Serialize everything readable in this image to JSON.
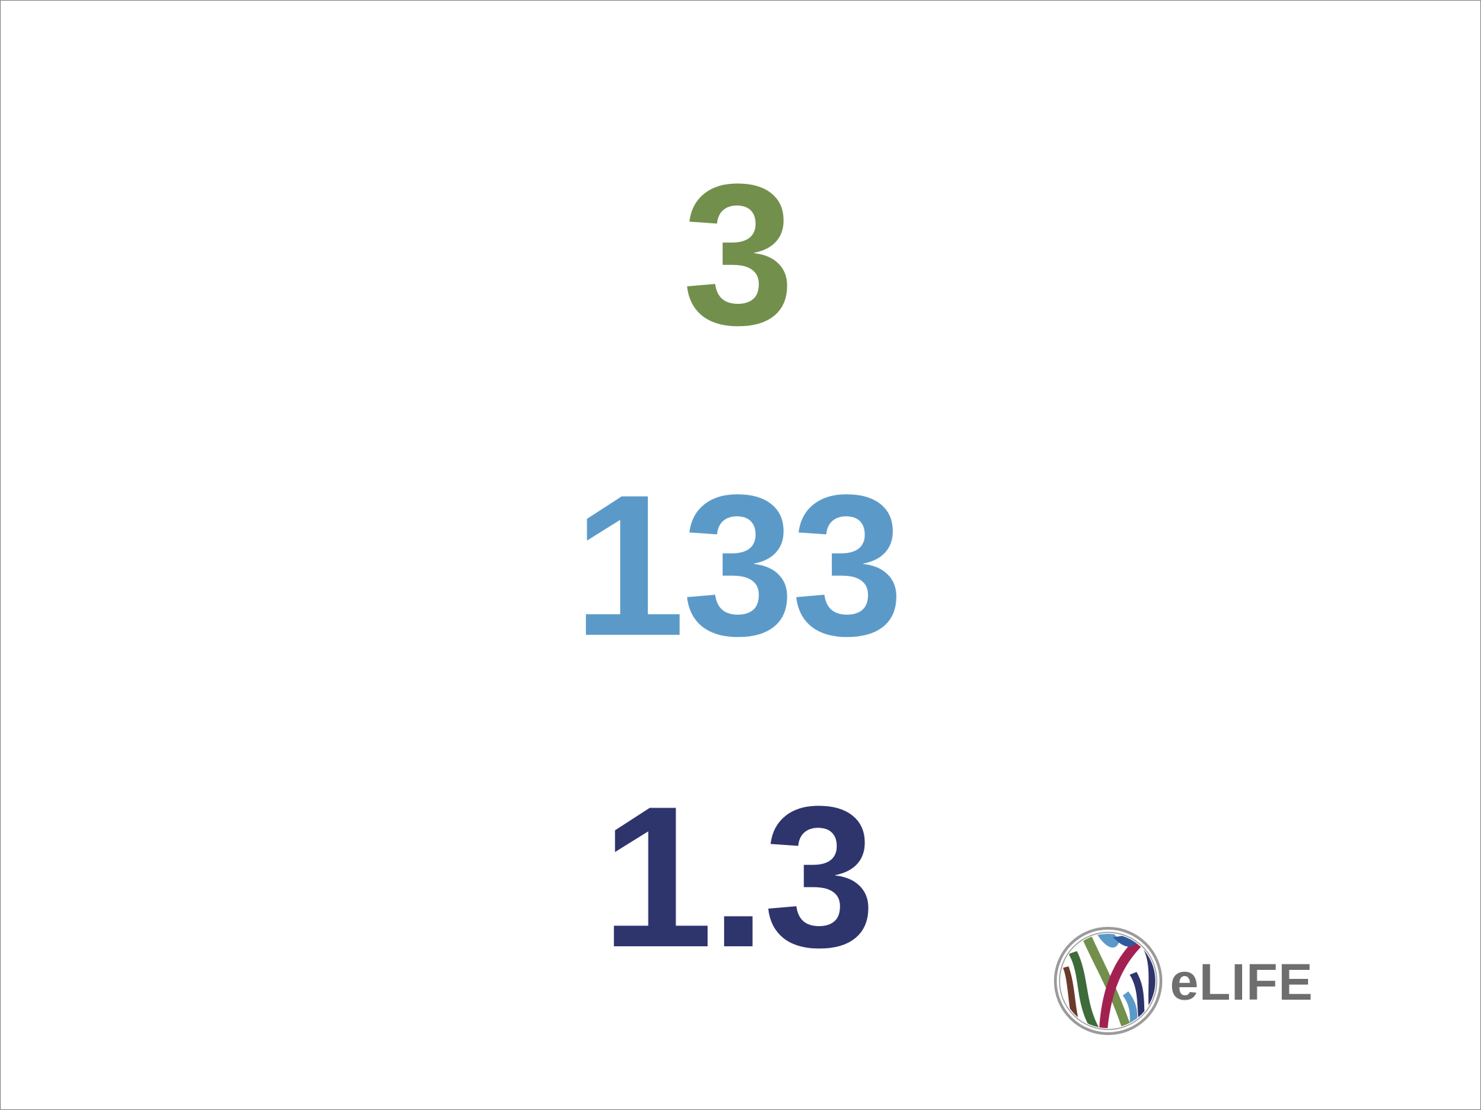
{
  "stats": [
    {
      "value": "3",
      "color": "#728f4c"
    },
    {
      "value": "133",
      "color": "#5b9ac8"
    },
    {
      "value": "1.3",
      "color": "#2e346c"
    }
  ],
  "logo": {
    "text": "eLIFE",
    "icon": "elife-logo-icon",
    "colors": [
      "#728f4c",
      "#5b9ac8",
      "#a32150",
      "#2e346c",
      "#3d6b3a",
      "#6b3a2a"
    ]
  }
}
